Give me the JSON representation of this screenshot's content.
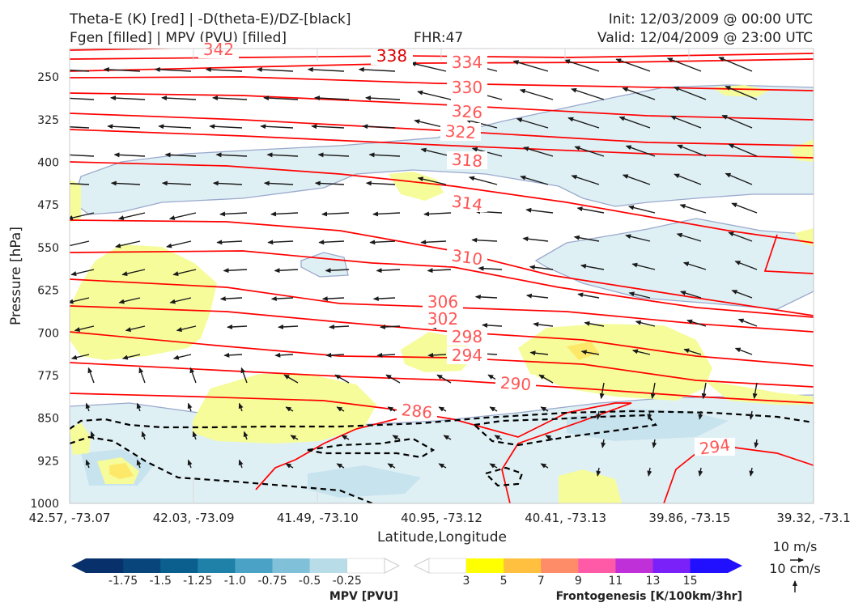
{
  "header": {
    "title_line1": "Theta-E (K) [red] | -D(theta-E)/DZ-[black]",
    "title_line2": "Fgen [filled] | MPV (PVU) [filled]",
    "fhr": "FHR:47",
    "init": "Init: 12/03/2009 @ 00:00 UTC",
    "valid": "Valid: 12/04/2009 @ 23:00 UTC"
  },
  "colors": {
    "theta_e": "#ff0000",
    "theta_e_label": "#ff5555",
    "mpv_neg": [
      "#08306b",
      "#08457a",
      "#0a5f8e",
      "#1f80a8",
      "#4aa3c6",
      "#80c1d9",
      "#b8dde9",
      "#ffffff"
    ],
    "fgen": [
      "#ffff00",
      "#ffc03f",
      "#ff8c69",
      "#ff5aa8",
      "#c030d8",
      "#7a20f8",
      "#2010ff"
    ],
    "fgen_light": "#f6fc9a",
    "mpv_light": "#dff0f5",
    "stability": "#000000",
    "arrows": "#1a1a1a"
  },
  "chart_data": {
    "type": "cross-section",
    "xlabel": "Latitude,Longitude",
    "ylabel": "Pressure [hPa]",
    "x_ticks": [
      "42.57, -73.07",
      "42.03, -73.09",
      "41.49, -73.10",
      "40.95, -73.12",
      "40.41, -73.13",
      "39.86, -73.15",
      "39.32, -73.1"
    ],
    "y_ticks": [
      250,
      325,
      400,
      475,
      550,
      625,
      700,
      775,
      850,
      925,
      1000
    ],
    "ylim": [
      1000,
      200
    ],
    "theta_e_labels": [
      "342",
      "338",
      "334",
      "330",
      "326",
      "322",
      "318",
      "314",
      "310",
      "306",
      "302",
      "298",
      "294",
      "290",
      "286",
      "294"
    ],
    "wind_legend": {
      "horizontal": "10 m/s",
      "vertical": "10 cm/s"
    },
    "colorbar_mpv": {
      "label": "MPV [PVU]",
      "ticks": [
        "-1.75",
        "-1.5",
        "-1.25",
        "-1.0",
        "-0.75",
        "-0.5",
        "-0.25"
      ]
    },
    "colorbar_fgen": {
      "label": "Frontogenesis [K/100km/3hr]",
      "ticks": [
        "3",
        "5",
        "7",
        "9",
        "11",
        "13",
        "15"
      ]
    }
  }
}
